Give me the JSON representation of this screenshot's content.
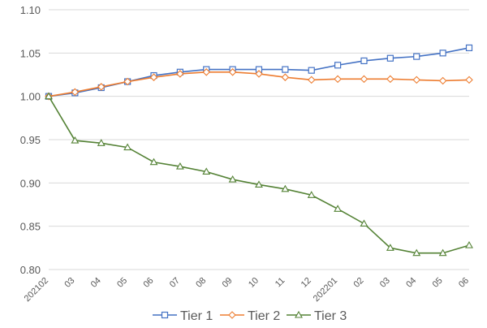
{
  "chart_data": {
    "type": "line",
    "title": "",
    "xlabel": "",
    "ylabel": "",
    "ylim": [
      0.8,
      1.1
    ],
    "yticks": [
      "0.80",
      "0.85",
      "0.90",
      "0.95",
      "1.00",
      "1.05",
      "1.10"
    ],
    "grid": "horizontal",
    "legend_position": "bottom",
    "categories": [
      "202102",
      "03",
      "04",
      "05",
      "06",
      "07",
      "08",
      "09",
      "10",
      "11",
      "12",
      "202201",
      "02",
      "03",
      "04",
      "05",
      "06"
    ],
    "series": [
      {
        "name": "Tier 1",
        "color": "#4472c4",
        "marker": "square",
        "values": [
          1.0,
          1.004,
          1.01,
          1.017,
          1.024,
          1.028,
          1.031,
          1.031,
          1.031,
          1.031,
          1.03,
          1.036,
          1.041,
          1.044,
          1.046,
          1.05,
          1.056
        ]
      },
      {
        "name": "Tier 2",
        "color": "#ed7d31",
        "marker": "diamond",
        "values": [
          1.0,
          1.005,
          1.011,
          1.017,
          1.022,
          1.026,
          1.028,
          1.028,
          1.026,
          1.022,
          1.019,
          1.02,
          1.02,
          1.02,
          1.019,
          1.018,
          1.019
        ]
      },
      {
        "name": "Tier 3",
        "color": "#548235",
        "marker": "triangle",
        "values": [
          1.0,
          0.949,
          0.946,
          0.941,
          0.924,
          0.919,
          0.913,
          0.904,
          0.898,
          0.893,
          0.886,
          0.87,
          0.853,
          0.825,
          0.819,
          0.819,
          0.828
        ]
      }
    ]
  }
}
